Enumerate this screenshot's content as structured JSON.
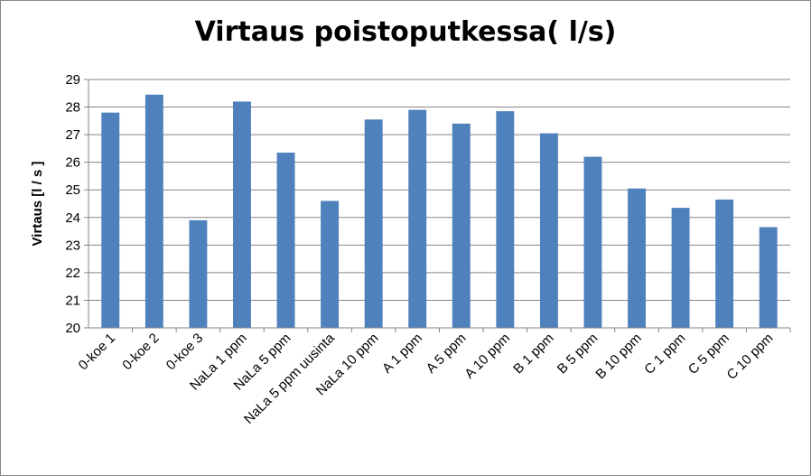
{
  "chart_data": {
    "type": "bar",
    "title": "Virtaus poistoputkessa( l/s)",
    "xlabel": "",
    "ylabel": "Virtaus  [l / s ]",
    "ylim": [
      20,
      29
    ],
    "yticks": [
      20,
      21,
      22,
      23,
      24,
      25,
      26,
      27,
      28,
      29
    ],
    "grid": true,
    "legend": "none",
    "bar_color": "#4F81BD",
    "categories": [
      "0-koe 1",
      "0-koe 2",
      "0-koe 3",
      "NaLa 1 ppm",
      "NaLa 5 ppm",
      "NaLa 5 ppm uusinta",
      "NaLa 10 ppm",
      "A 1 ppm",
      "A 5 ppm",
      "A 10 ppm",
      "B 1 ppm",
      "B 5 ppm",
      "B 10 ppm",
      "C 1 ppm",
      "C 5 ppm",
      "C 10 ppm"
    ],
    "values": [
      27.8,
      28.45,
      23.9,
      28.2,
      26.35,
      24.6,
      27.55,
      27.9,
      27.4,
      27.85,
      27.05,
      26.2,
      25.05,
      24.35,
      24.65,
      23.65
    ]
  }
}
